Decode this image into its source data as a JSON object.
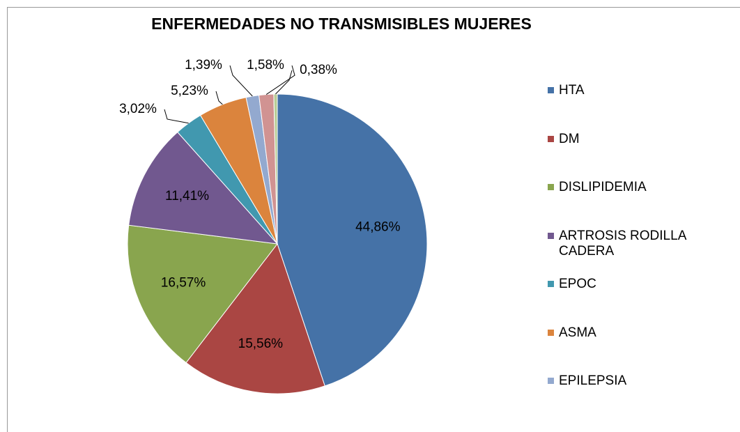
{
  "chart_data": {
    "type": "pie",
    "title": "ENFERMEDADES NO TRANSMISIBLES MUJERES",
    "categories": [
      "HTA",
      "DM",
      "DISLIPIDEMIA",
      "ARTROSIS RODILLA CADERA",
      "EPOC",
      "ASMA",
      "EPILEPSIA",
      null,
      null
    ],
    "values": [
      44.86,
      15.56,
      16.57,
      11.41,
      3.02,
      5.23,
      1.39,
      1.58,
      0.38
    ],
    "value_labels": [
      "44,86%",
      "15,56%",
      "16,57%",
      "11,41%",
      "3,02%",
      "5,23%",
      "1,39%",
      "1,58%",
      "0,38%"
    ],
    "colors": [
      "#4572a7",
      "#aa4643",
      "#89a54e",
      "#71588f",
      "#4198af",
      "#db843d",
      "#93a9cf",
      "#d19392",
      "#b9cd96"
    ],
    "legend": "right"
  }
}
